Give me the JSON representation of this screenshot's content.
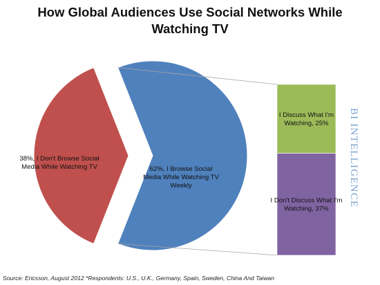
{
  "title_line1": "How Global Audiences Use Social Networks While",
  "title_line2": "Watching TV",
  "brand": "BI INTELLIGENCE",
  "source": "Source: Ericsson, August 2012 *Respondents: U.S., U.K., Germany, Spain, Sweden, China And Taiwan",
  "chart_data": {
    "type": "pie",
    "title": "How Global Audiences Use Social Networks While Watching TV",
    "slices": [
      {
        "label": "62%, I Browse Social Media While Watching TV Weekly",
        "lines": [
          "62%, I Browse Social",
          "Media While Watching TV",
          "Weekly"
        ],
        "value": 62,
        "color": "#4f81bd"
      },
      {
        "label": "38%, I Don't Browse Social Media While Watching TV",
        "lines": [
          "38%, I Don't Browse Social",
          "Media While Watching TV"
        ],
        "value": 38,
        "color": "#c0504d"
      }
    ],
    "breakdown_of": "62%, I Browse Social Media While Watching TV Weekly",
    "breakdown": [
      {
        "label": "I Discuss What I'm Watching, 25%",
        "lines": [
          "I Discuss What I'm",
          "Watching, 25%"
        ],
        "value": 25,
        "color": "#9bbb59"
      },
      {
        "label": "I Don't Discuss What I'm Watching, 37%",
        "lines": [
          "I Don't Discuss What I'm",
          "Watching, 37%"
        ],
        "value": 37,
        "color": "#8064a2"
      }
    ]
  }
}
